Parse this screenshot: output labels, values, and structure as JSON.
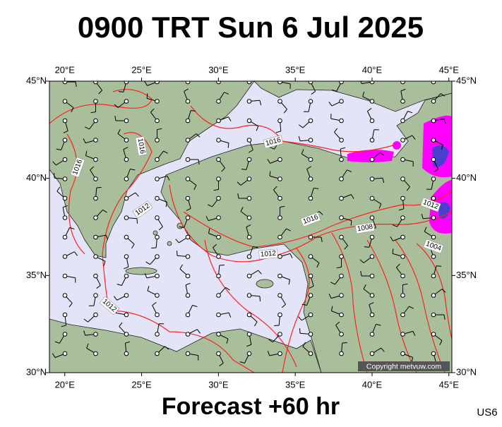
{
  "title": "0900 TRT Sun 6 Jul 2025",
  "lon_ticks": [
    {
      "value": 20,
      "label": "20°E"
    },
    {
      "value": 25,
      "label": "25°E"
    },
    {
      "value": 30,
      "label": "30°E"
    },
    {
      "value": 35,
      "label": "35°E"
    },
    {
      "value": 40,
      "label": "40°E"
    },
    {
      "value": 45,
      "label": "45°E"
    }
  ],
  "lat_ticks": [
    {
      "value": 30,
      "label": "30°N"
    },
    {
      "value": 35,
      "label": "35°N"
    },
    {
      "value": 40,
      "label": "40°N"
    },
    {
      "value": 45,
      "label": "45°N"
    }
  ],
  "isobar_labels": [
    "1016",
    "1016",
    "1016",
    "1012",
    "1016",
    "1012",
    "1008",
    "1012",
    "1004",
    "1012"
  ],
  "copyright": "Copyright metvuw.com",
  "footer": "Forecast +60 hr",
  "code": "US6"
}
